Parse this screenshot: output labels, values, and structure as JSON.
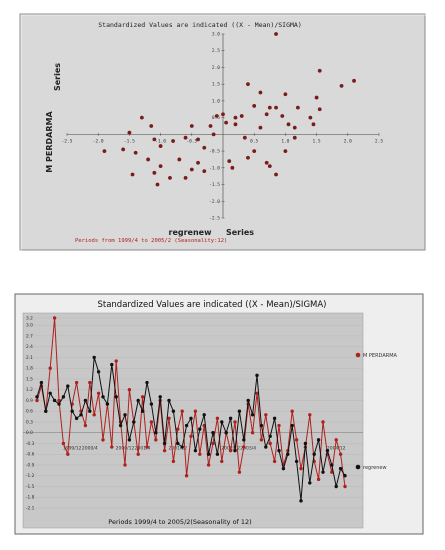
{
  "chart_data": [
    {
      "type": "scatter",
      "title": "Standardized Values are indicated  ((X - Mean)/SIGMA)",
      "xlabel_left": "regrenew",
      "xlabel_right": "Series",
      "ylabel_top": "Series",
      "ylabel_bottom": "M PERDARMA",
      "footnote": "Periods from 1999/4 to 2005/2 (Seasonality:12)",
      "xlim": [
        -2.5,
        2.5
      ],
      "ylim": [
        -2.5,
        3.0
      ],
      "x_ticks": [
        "-2.5",
        "-2.0",
        "-1.5",
        "-1.0",
        "-0.5",
        "0.5",
        "1.0",
        "1.5",
        "2.0",
        "2.5"
      ],
      "x_tick_values": [
        -2.5,
        -2.0,
        -1.5,
        -1.0,
        -0.5,
        0.5,
        1.0,
        1.5,
        2.0,
        2.5
      ],
      "y_ticks": [
        "3.0",
        "2.5",
        "2.0",
        "1.5",
        "1.0",
        "0.5",
        "-0.5",
        "-1.0",
        "-1.5",
        "-2.0",
        "-2.5"
      ],
      "y_tick_values": [
        3.0,
        2.5,
        2.0,
        1.5,
        1.0,
        0.5,
        -0.5,
        -1.0,
        -1.5,
        -2.0,
        -2.5
      ],
      "point_color": "#7a1c1c",
      "points": [
        [
          0.85,
          3.0
        ],
        [
          1.55,
          1.9
        ],
        [
          2.1,
          1.6
        ],
        [
          1.9,
          1.45
        ],
        [
          0.4,
          1.5
        ],
        [
          0.6,
          1.25
        ],
        [
          1.0,
          1.2
        ],
        [
          1.5,
          1.1
        ],
        [
          0.5,
          0.85
        ],
        [
          0.75,
          0.8
        ],
        [
          0.85,
          0.8
        ],
        [
          1.2,
          0.8
        ],
        [
          0.0,
          0.6
        ],
        [
          0.2,
          0.5
        ],
        [
          0.3,
          0.55
        ],
        [
          0.7,
          0.6
        ],
        [
          0.95,
          0.55
        ],
        [
          1.4,
          0.5
        ],
        [
          1.55,
          0.75
        ],
        [
          -1.3,
          0.5
        ],
        [
          -0.1,
          0.55
        ],
        [
          0.05,
          0.35
        ],
        [
          0.2,
          0.3
        ],
        [
          1.05,
          0.3
        ],
        [
          -1.15,
          0.25
        ],
        [
          -0.5,
          0.25
        ],
        [
          -0.2,
          0.25
        ],
        [
          0.6,
          0.2
        ],
        [
          1.15,
          0.2
        ],
        [
          1.45,
          0.3
        ],
        [
          -1.5,
          0.05
        ],
        [
          -0.15,
          0.0
        ],
        [
          -0.6,
          -0.1
        ],
        [
          -1.1,
          -0.15
        ],
        [
          -0.8,
          -0.2
        ],
        [
          -0.4,
          -0.15
        ],
        [
          0.35,
          -0.1
        ],
        [
          1.15,
          -0.1
        ],
        [
          -1.0,
          -0.35
        ],
        [
          -1.9,
          -0.5
        ],
        [
          -1.6,
          -0.45
        ],
        [
          -1.4,
          -0.55
        ],
        [
          -0.3,
          -0.4
        ],
        [
          0.5,
          -0.5
        ],
        [
          1.0,
          -0.5
        ],
        [
          0.4,
          -0.7
        ],
        [
          -1.2,
          -0.75
        ],
        [
          -0.7,
          -0.75
        ],
        [
          -0.4,
          -0.85
        ],
        [
          0.1,
          -0.8
        ],
        [
          0.7,
          -0.85
        ],
        [
          0.15,
          -1.0
        ],
        [
          0.75,
          -0.95
        ],
        [
          -1.0,
          -0.95
        ],
        [
          -0.5,
          -1.05
        ],
        [
          -1.1,
          -1.15
        ],
        [
          -0.3,
          -1.1
        ],
        [
          -1.45,
          -1.2
        ],
        [
          0.85,
          -1.2
        ],
        [
          -0.85,
          -1.3
        ],
        [
          -0.6,
          -1.3
        ],
        [
          -1.05,
          -1.5
        ]
      ]
    },
    {
      "type": "line",
      "title": "Standardized Values are indicated  ((X - Mean)/SIGMA)",
      "footnote": "Periods 1999/4 to 2005/2(Seasonality of 12)",
      "ylim": [
        -2.1,
        3.2
      ],
      "y_ticks": [
        "3.2",
        "3.0",
        "2.7",
        "2.4",
        "2.1",
        "1.8",
        "1.5",
        "1.2",
        "0.9",
        "0.6",
        "0.3",
        "0.0",
        "-0.3",
        "-0.6",
        "-0.9",
        "-1.2",
        "-1.5",
        "-1.8",
        "-2.1"
      ],
      "y_tick_values": [
        3.2,
        3.0,
        2.7,
        2.4,
        2.1,
        1.8,
        1.5,
        1.2,
        0.9,
        0.6,
        0.3,
        0.0,
        -0.3,
        -0.6,
        -0.9,
        -1.2,
        -1.5,
        -1.8,
        -2.1
      ],
      "x_ticks": [
        "1999/12",
        "2000/4",
        "2000/12",
        "2001/4",
        "2001/12",
        "2002/12",
        "2003/4",
        "2004/12"
      ],
      "x_tick_index": [
        8,
        12,
        20,
        24,
        32,
        44,
        48,
        68
      ],
      "series": [
        {
          "name": "M PERDARMA",
          "color": "#b0201c",
          "values": [
            0.9,
            1.3,
            0.6,
            1.8,
            3.2,
            0.9,
            -0.3,
            -0.6,
            0.8,
            1.4,
            0.6,
            0.2,
            1.4,
            0.5,
            1.1,
            -0.2,
            0.8,
            -0.4,
            2.0,
            0.3,
            -0.9,
            1.2,
            0.3,
            -0.6,
            1.0,
            -0.4,
            0.3,
            -0.2,
            0.9,
            -0.5,
            0.4,
            -0.8,
            0.1,
            0.6,
            -1.2,
            -0.1,
            0.6,
            -0.6,
            0.2,
            -0.9,
            -0.3,
            0.4,
            -0.8,
            0.0,
            -0.5,
            0.3,
            -1.1,
            -0.4,
            0.8,
            0.0,
            1.1,
            -0.2,
            0.5,
            -0.3,
            -0.8,
            0.2,
            -0.9,
            -0.5,
            0.6,
            -0.2,
            -1.0,
            -0.4,
            0.5,
            -0.8,
            -1.3,
            0.3,
            -0.6,
            -1.1,
            -0.2,
            -0.6,
            -1.5
          ]
        },
        {
          "name": "regrenew",
          "color": "#111111",
          "values": [
            1.0,
            1.4,
            0.6,
            1.1,
            0.9,
            0.8,
            1.0,
            1.3,
            0.6,
            0.4,
            0.5,
            0.9,
            0.6,
            2.1,
            1.7,
            1.0,
            0.8,
            1.9,
            1.0,
            0.2,
            0.5,
            -0.2,
            0.3,
            0.9,
            0.6,
            1.4,
            0.8,
            0.0,
            1.0,
            -0.3,
            0.9,
            0.6,
            -0.3,
            -0.4,
            0.2,
            0.4,
            -0.5,
            0.1,
            0.5,
            -0.6,
            0.0,
            -0.6,
            0.3,
            0.0,
            0.4,
            -0.5,
            0.6,
            -0.2,
            0.9,
            0.5,
            1.6,
            0.2,
            -0.4,
            -0.1,
            0.4,
            -0.5,
            -1.0,
            -0.6,
            0.2,
            -0.8,
            -1.9,
            -0.3,
            -1.4,
            -0.6,
            -0.2,
            -1.1,
            -0.5,
            -0.9,
            -1.5,
            -1.0,
            -1.2
          ]
        }
      ]
    }
  ]
}
